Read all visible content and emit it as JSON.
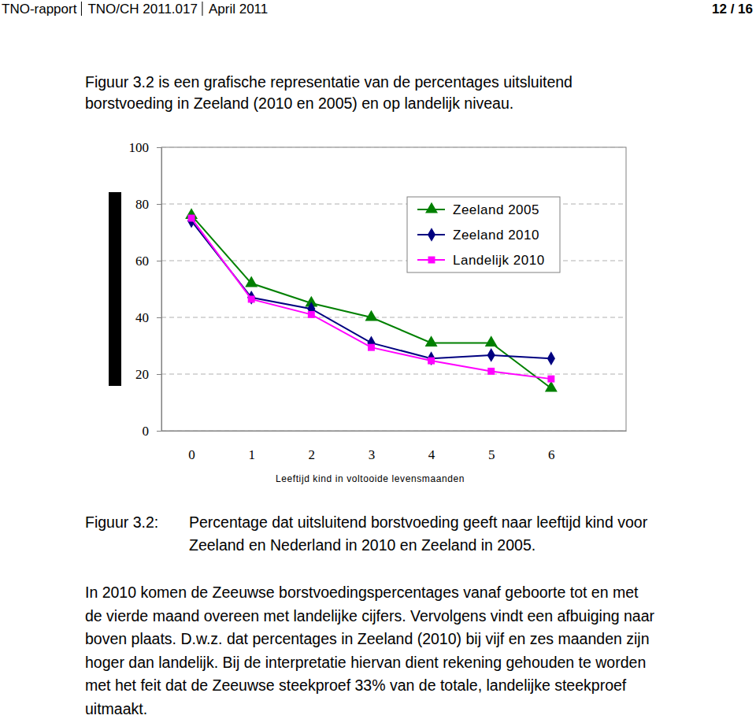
{
  "header": {
    "items": [
      "TNO-rapport",
      "TNO/CH 2011.017",
      "April 2011"
    ],
    "page": "12 / 16"
  },
  "intro": [
    "Figuur 3.2 is een grafische representatie van de percentages uitsluitend",
    "borstvoeding in Zeeland (2010 en 2005) en op landelijk niveau."
  ],
  "chart_data": {
    "type": "line",
    "x_label": "Leeftijd kind in voltooide levensmaanden",
    "x": [
      0,
      1,
      2,
      3,
      4,
      5,
      6
    ],
    "xlim": [
      -0.5,
      7.25
    ],
    "xticks": [
      0,
      1,
      2,
      3,
      4,
      5,
      6
    ],
    "ylim": [
      0,
      100
    ],
    "yticks": [
      0,
      20,
      40,
      60,
      80,
      100
    ],
    "grid": true,
    "legend": "upper right",
    "series": [
      {
        "name": "Zeeland 2005",
        "color": "#008000",
        "marker": "triangle",
        "values": [
          76,
          52,
          45,
          40,
          31,
          31,
          15
        ]
      },
      {
        "name": "Zeeland 2010",
        "color": "#000080",
        "marker": "diamond",
        "values": [
          74,
          47,
          43,
          31,
          25.5,
          26.7,
          25.5
        ]
      },
      {
        "name": "Landelijk 2010",
        "color": "#ff00ff",
        "marker": "square",
        "values": [
          75,
          46.4,
          41,
          29.4,
          24.7,
          21,
          18.3
        ]
      }
    ]
  },
  "caption": {
    "label": "Figuur 3.2:",
    "lines": [
      "Percentage dat uitsluitend borstvoeding geeft naar leeftijd kind voor",
      "Zeeland en Nederland in 2010 en Zeeland in 2005."
    ]
  },
  "body": [
    "In 2010 komen de Zeeuwse borstvoedingspercentages vanaf geboorte tot en met",
    "de vierde maand overeen met landelijke cijfers. Vervolgens vindt een afbuiging naar",
    "boven plaats. D.w.z. dat percentages in Zeeland (2010) bij vijf en zes maanden zijn",
    "hoger dan landelijk. Bij de interpretatie hiervan dient rekening gehouden te worden",
    "met het feit dat de Zeeuwse steekproef 33% van de totale, landelijke steekproef",
    "uitmaakt."
  ]
}
